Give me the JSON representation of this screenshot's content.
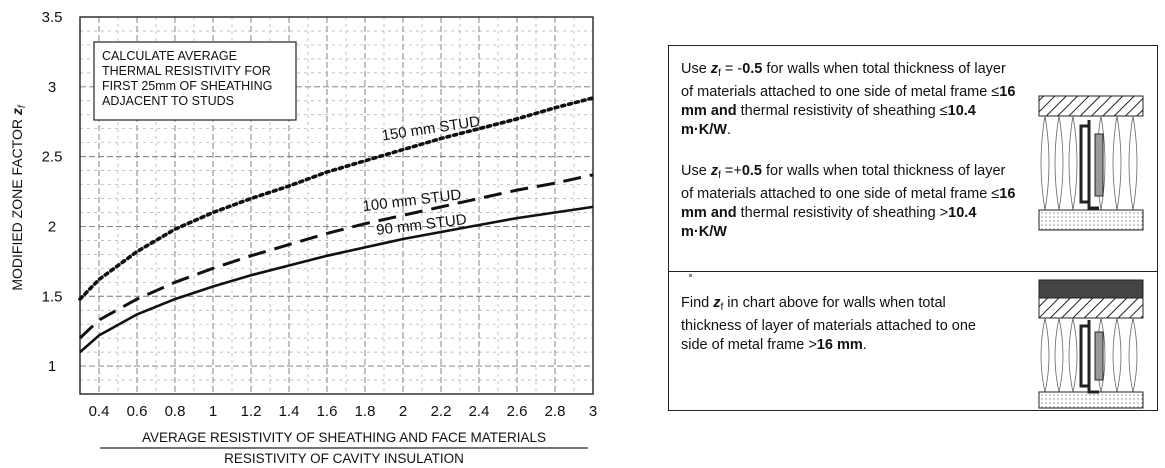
{
  "chart_data": {
    "type": "line",
    "ylabel_main": "MODIFIED ZONE FACTOR",
    "ylabel_sym": "z",
    "ylabel_sub": "f",
    "xlabel_numerator": "AVERAGE RESISTIVITY OF SHEATHING AND FACE MATERIALS",
    "xlabel_denominator": "RESISTIVITY OF CAVITY INSULATION",
    "xlim": [
      0.3,
      3.0
    ],
    "ylim": [
      0.8,
      3.5
    ],
    "xticks": [
      "0.4",
      "0.6",
      "0.8",
      "1",
      "1.2",
      "1.4",
      "1.6",
      "1.8",
      "2",
      "2.2",
      "2.4",
      "2.6",
      "2.8",
      "3"
    ],
    "yticks": [
      "1",
      "1.5",
      "2",
      "2.5",
      "3",
      "3.5"
    ],
    "grid": true,
    "annotation": [
      "CALCULATE AVERAGE",
      "THERMAL RESISTIVITY FOR",
      "FIRST 25mm OF SHEATHING",
      "ADJACENT TO STUDS"
    ],
    "series": [
      {
        "name": "150 mm STUD",
        "style": "dotted",
        "x": [
          0.3,
          0.4,
          0.6,
          0.8,
          1.0,
          1.2,
          1.4,
          1.6,
          1.8,
          2.0,
          2.2,
          2.4,
          2.6,
          2.8,
          3.0
        ],
        "y": [
          1.48,
          1.62,
          1.82,
          1.98,
          2.1,
          2.2,
          2.29,
          2.39,
          2.47,
          2.55,
          2.63,
          2.7,
          2.77,
          2.85,
          2.92
        ]
      },
      {
        "name": "100 mm STUD",
        "style": "dashed",
        "x": [
          0.3,
          0.4,
          0.6,
          0.8,
          1.0,
          1.2,
          1.4,
          1.6,
          1.8,
          2.0,
          2.2,
          2.4,
          2.6,
          2.8,
          3.0
        ],
        "y": [
          1.2,
          1.33,
          1.48,
          1.6,
          1.7,
          1.79,
          1.87,
          1.95,
          2.02,
          2.08,
          2.14,
          2.2,
          2.26,
          2.31,
          2.37
        ]
      },
      {
        "name": "90 mm STUD",
        "style": "solid",
        "x": [
          0.3,
          0.4,
          0.6,
          0.8,
          1.0,
          1.2,
          1.4,
          1.6,
          1.8,
          2.0,
          2.2,
          2.4,
          2.6,
          2.8,
          3.0
        ],
        "y": [
          1.1,
          1.22,
          1.37,
          1.48,
          1.57,
          1.65,
          1.72,
          1.79,
          1.85,
          1.91,
          1.96,
          2.01,
          2.06,
          2.1,
          2.14
        ]
      }
    ]
  },
  "panel": {
    "note1": {
      "a": "Use ",
      "z": "z",
      "sub": "f",
      "eq": " = -",
      "val": "0.5",
      "b": " for walls when total thickness of layer of materials attached to one side of metal frame ≤",
      "c": "16 mm and",
      "d": " thermal resistivity of sheathing ≤",
      "e": "10.4 m·K/W",
      "f": "."
    },
    "note2": {
      "a": "Use ",
      "z": "z",
      "sub": "f",
      "eq": " =+",
      "val": "0.5",
      "b": " for walls when total thickness of layer of materials attached to one side of metal frame ≤",
      "c": "16 mm and",
      "d": " thermal resistivity of sheathing >",
      "e": "10.4 m·K/W",
      "f": ""
    },
    "note3": {
      "a": "Find ",
      "z": "z",
      "sub": "f",
      "b": " in chart above for walls when total thickness of layer of materials attached to one side of metal frame >",
      "c": "16 mm",
      "d": "."
    }
  }
}
